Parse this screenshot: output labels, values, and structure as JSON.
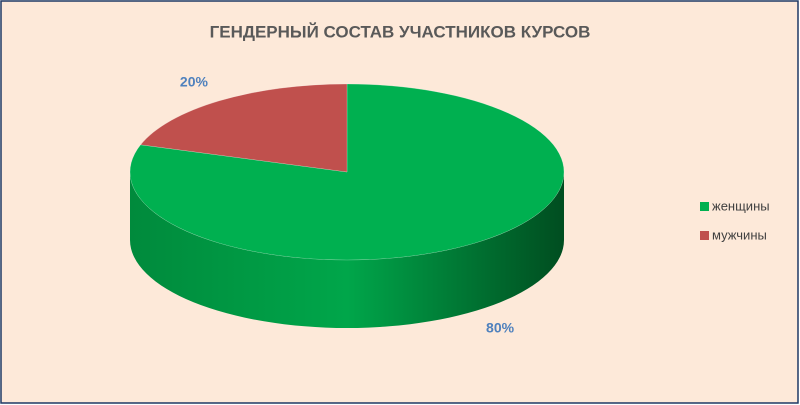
{
  "chart_data": {
    "type": "pie",
    "title": "ГЕНДЕРНЫЙ СОСТАВ УЧАСТНИКОВ КУРСОВ",
    "categories": [
      "женщины",
      "мужчины"
    ],
    "values": [
      80,
      20
    ],
    "value_labels": [
      "80%",
      "20%"
    ],
    "colors": [
      "#00b050",
      "#c0504d"
    ],
    "legend": "right"
  }
}
